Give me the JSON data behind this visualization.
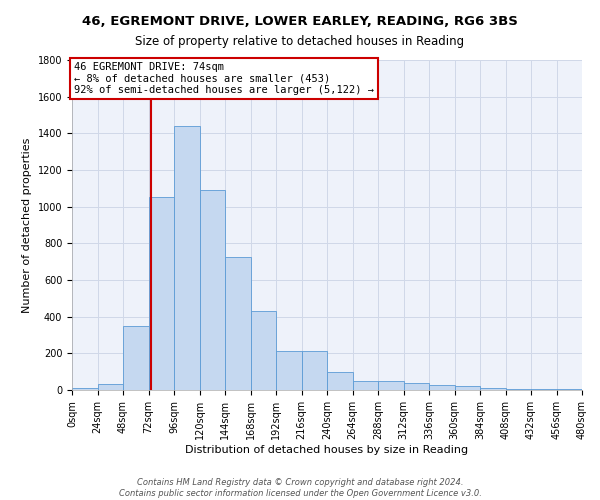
{
  "title_line1": "46, EGREMONT DRIVE, LOWER EARLEY, READING, RG6 3BS",
  "title_line2": "Size of property relative to detached houses in Reading",
  "xlabel": "Distribution of detached houses by size in Reading",
  "ylabel": "Number of detached properties",
  "bin_edges": [
    0,
    24,
    48,
    72,
    96,
    120,
    144,
    168,
    192,
    216,
    240,
    264,
    288,
    312,
    336,
    360,
    384,
    408,
    432,
    456,
    480
  ],
  "bar_heights": [
    10,
    35,
    350,
    1055,
    1440,
    1090,
    725,
    430,
    215,
    215,
    100,
    50,
    50,
    40,
    30,
    20,
    10,
    5,
    5,
    5
  ],
  "bar_color": "#c5d8f0",
  "bar_edge_color": "#5b9bd5",
  "property_size": 74,
  "annotation_text": "46 EGREMONT DRIVE: 74sqm\n← 8% of detached houses are smaller (453)\n92% of semi-detached houses are larger (5,122) →",
  "annotation_box_color": "#ffffff",
  "annotation_border_color": "#cc0000",
  "vline_color": "#cc0000",
  "ylim": [
    0,
    1800
  ],
  "yticks": [
    0,
    200,
    400,
    600,
    800,
    1000,
    1200,
    1400,
    1600,
    1800
  ],
  "grid_color": "#d0d8e8",
  "bg_color": "#eef2fa",
  "footer_line1": "Contains HM Land Registry data © Crown copyright and database right 2024.",
  "footer_line2": "Contains public sector information licensed under the Open Government Licence v3.0.",
  "title_fontsize": 9.5,
  "subtitle_fontsize": 8.5,
  "axis_label_fontsize": 8,
  "tick_fontsize": 7,
  "annotation_fontsize": 7.5,
  "footer_fontsize": 6
}
